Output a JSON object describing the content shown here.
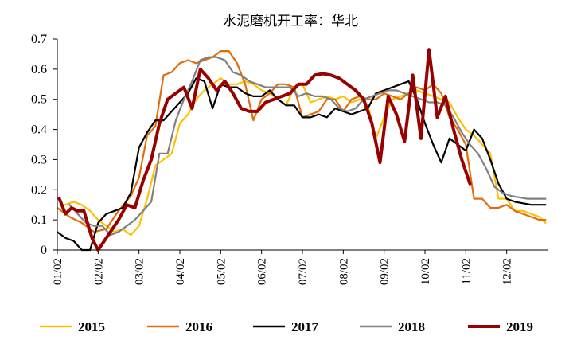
{
  "chart_data": {
    "type": "line",
    "title": "水泥磨机开工率：华北",
    "xlabel": "",
    "ylabel": "",
    "ylim": [
      0,
      0.7
    ],
    "yticks": [
      "0",
      "0.1",
      "0.2",
      "0.3",
      "0.4",
      "0.5",
      "0.6",
      "0.7"
    ],
    "xlim": [
      1,
      13
    ],
    "xticks": [
      "01/02",
      "02/02",
      "03/02",
      "04/02",
      "05/02",
      "06/02",
      "07/02",
      "08/02",
      "09/02",
      "10/02",
      "11/02",
      "12/02"
    ],
    "grid": false,
    "legend": "bottom",
    "series": [
      {
        "name": "2015",
        "color": "#FFC000",
        "width": 2.2,
        "points": [
          [
            1.2,
            0.15
          ],
          [
            1.4,
            0.16
          ],
          [
            1.6,
            0.15
          ],
          [
            1.8,
            0.13
          ],
          [
            2.0,
            0.1
          ],
          [
            2.2,
            0.08
          ],
          [
            2.4,
            0.06
          ],
          [
            2.6,
            0.07
          ],
          [
            2.8,
            0.05
          ],
          [
            3.0,
            0.08
          ],
          [
            3.2,
            0.17
          ],
          [
            3.4,
            0.28
          ],
          [
            3.6,
            0.3
          ],
          [
            3.8,
            0.32
          ],
          [
            4.0,
            0.42
          ],
          [
            4.2,
            0.45
          ],
          [
            4.4,
            0.5
          ],
          [
            4.6,
            0.53
          ],
          [
            4.8,
            0.55
          ],
          [
            5.0,
            0.57
          ],
          [
            5.2,
            0.55
          ],
          [
            5.4,
            0.55
          ],
          [
            5.6,
            0.56
          ],
          [
            5.8,
            0.55
          ],
          [
            6.0,
            0.53
          ],
          [
            6.2,
            0.52
          ],
          [
            6.4,
            0.5
          ],
          [
            6.6,
            0.48
          ],
          [
            6.8,
            0.54
          ],
          [
            7.0,
            0.55
          ],
          [
            7.2,
            0.49
          ],
          [
            7.4,
            0.5
          ],
          [
            7.6,
            0.51
          ],
          [
            7.8,
            0.5
          ],
          [
            8.0,
            0.51
          ],
          [
            8.2,
            0.49
          ],
          [
            8.4,
            0.5
          ],
          [
            8.6,
            0.48
          ],
          [
            8.8,
            0.37
          ],
          [
            9.0,
            0.44
          ],
          [
            9.2,
            0.5
          ],
          [
            9.4,
            0.51
          ],
          [
            9.6,
            0.52
          ],
          [
            9.8,
            0.53
          ],
          [
            10.0,
            0.52
          ],
          [
            10.2,
            0.51
          ],
          [
            10.4,
            0.5
          ],
          [
            10.6,
            0.49
          ],
          [
            10.8,
            0.44
          ],
          [
            11.0,
            0.4
          ],
          [
            11.2,
            0.38
          ],
          [
            11.4,
            0.35
          ],
          [
            11.6,
            0.32
          ],
          [
            11.8,
            0.17
          ],
          [
            12.0,
            0.17
          ],
          [
            12.2,
            0.13
          ],
          [
            12.4,
            0.13
          ],
          [
            12.6,
            0.12
          ],
          [
            12.8,
            0.11
          ],
          [
            12.95,
            0.09
          ]
        ]
      },
      {
        "name": "2016",
        "color": "#E46C0A",
        "width": 2.2,
        "points": [
          [
            1.0,
            0.14
          ],
          [
            1.3,
            0.11
          ],
          [
            1.6,
            0.09
          ],
          [
            1.9,
            0.06
          ],
          [
            2.2,
            0.07
          ],
          [
            2.5,
            0.13
          ],
          [
            2.8,
            0.18
          ],
          [
            3.0,
            0.24
          ],
          [
            3.2,
            0.38
          ],
          [
            3.4,
            0.41
          ],
          [
            3.6,
            0.58
          ],
          [
            3.8,
            0.59
          ],
          [
            4.0,
            0.62
          ],
          [
            4.2,
            0.63
          ],
          [
            4.4,
            0.62
          ],
          [
            4.6,
            0.63
          ],
          [
            4.8,
            0.64
          ],
          [
            5.0,
            0.66
          ],
          [
            5.2,
            0.66
          ],
          [
            5.4,
            0.62
          ],
          [
            5.6,
            0.55
          ],
          [
            5.8,
            0.43
          ],
          [
            6.0,
            0.5
          ],
          [
            6.2,
            0.52
          ],
          [
            6.4,
            0.55
          ],
          [
            6.6,
            0.55
          ],
          [
            6.8,
            0.54
          ],
          [
            7.0,
            0.44
          ],
          [
            7.2,
            0.45
          ],
          [
            7.4,
            0.46
          ],
          [
            7.6,
            0.5
          ],
          [
            7.8,
            0.5
          ],
          [
            8.0,
            0.46
          ],
          [
            8.2,
            0.5
          ],
          [
            8.4,
            0.51
          ],
          [
            8.6,
            0.5
          ],
          [
            8.8,
            0.5
          ],
          [
            9.0,
            0.52
          ],
          [
            9.2,
            0.51
          ],
          [
            9.4,
            0.5
          ],
          [
            9.6,
            0.52
          ],
          [
            9.8,
            0.54
          ],
          [
            10.0,
            0.53
          ],
          [
            10.2,
            0.55
          ],
          [
            10.4,
            0.52
          ],
          [
            10.6,
            0.44
          ],
          [
            10.8,
            0.4
          ],
          [
            11.0,
            0.35
          ],
          [
            11.2,
            0.17
          ],
          [
            11.4,
            0.17
          ],
          [
            11.6,
            0.14
          ],
          [
            11.8,
            0.14
          ],
          [
            12.0,
            0.15
          ],
          [
            12.2,
            0.13
          ],
          [
            12.4,
            0.12
          ],
          [
            12.6,
            0.11
          ],
          [
            12.8,
            0.1
          ],
          [
            12.95,
            0.1
          ]
        ]
      },
      {
        "name": "2017",
        "color": "#000000",
        "width": 2.2,
        "points": [
          [
            1.0,
            0.06
          ],
          [
            1.2,
            0.04
          ],
          [
            1.4,
            0.03
          ],
          [
            1.6,
            0.0
          ],
          [
            1.8,
            0.0
          ],
          [
            2.0,
            0.09
          ],
          [
            2.2,
            0.12
          ],
          [
            2.4,
            0.13
          ],
          [
            2.6,
            0.14
          ],
          [
            2.8,
            0.19
          ],
          [
            3.0,
            0.34
          ],
          [
            3.2,
            0.39
          ],
          [
            3.4,
            0.43
          ],
          [
            3.6,
            0.43
          ],
          [
            3.8,
            0.46
          ],
          [
            4.0,
            0.49
          ],
          [
            4.2,
            0.52
          ],
          [
            4.4,
            0.57
          ],
          [
            4.6,
            0.56
          ],
          [
            4.8,
            0.47
          ],
          [
            5.0,
            0.55
          ],
          [
            5.2,
            0.54
          ],
          [
            5.4,
            0.54
          ],
          [
            5.6,
            0.52
          ],
          [
            5.8,
            0.51
          ],
          [
            6.0,
            0.51
          ],
          [
            6.2,
            0.53
          ],
          [
            6.4,
            0.5
          ],
          [
            6.6,
            0.48
          ],
          [
            6.8,
            0.48
          ],
          [
            7.0,
            0.44
          ],
          [
            7.2,
            0.44
          ],
          [
            7.4,
            0.45
          ],
          [
            7.6,
            0.44
          ],
          [
            7.8,
            0.47
          ],
          [
            8.0,
            0.46
          ],
          [
            8.2,
            0.45
          ],
          [
            8.4,
            0.46
          ],
          [
            8.6,
            0.47
          ],
          [
            8.8,
            0.52
          ],
          [
            9.0,
            0.53
          ],
          [
            9.2,
            0.54
          ],
          [
            9.4,
            0.55
          ],
          [
            9.6,
            0.56
          ],
          [
            9.8,
            0.5
          ],
          [
            10.0,
            0.42
          ],
          [
            10.2,
            0.35
          ],
          [
            10.4,
            0.29
          ],
          [
            10.6,
            0.37
          ],
          [
            10.8,
            0.35
          ],
          [
            11.0,
            0.33
          ],
          [
            11.2,
            0.4
          ],
          [
            11.4,
            0.37
          ],
          [
            11.6,
            0.3
          ],
          [
            11.8,
            0.22
          ],
          [
            12.0,
            0.17
          ],
          [
            12.2,
            0.16
          ],
          [
            12.4,
            0.155
          ],
          [
            12.6,
            0.15
          ],
          [
            12.95,
            0.15
          ]
        ]
      },
      {
        "name": "2018",
        "color": "#808080",
        "width": 2.2,
        "points": [
          [
            1.3,
            0.15
          ],
          [
            1.5,
            0.12
          ],
          [
            1.7,
            0.09
          ],
          [
            1.9,
            0.08
          ],
          [
            2.1,
            0.08
          ],
          [
            2.3,
            0.05
          ],
          [
            2.5,
            0.06
          ],
          [
            2.7,
            0.08
          ],
          [
            2.9,
            0.1
          ],
          [
            3.1,
            0.13
          ],
          [
            3.3,
            0.16
          ],
          [
            3.5,
            0.32
          ],
          [
            3.7,
            0.32
          ],
          [
            3.9,
            0.43
          ],
          [
            4.1,
            0.5
          ],
          [
            4.3,
            0.56
          ],
          [
            4.5,
            0.63
          ],
          [
            4.7,
            0.64
          ],
          [
            4.9,
            0.64
          ],
          [
            5.1,
            0.63
          ],
          [
            5.3,
            0.59
          ],
          [
            5.5,
            0.58
          ],
          [
            5.7,
            0.56
          ],
          [
            5.9,
            0.55
          ],
          [
            6.1,
            0.54
          ],
          [
            6.3,
            0.54
          ],
          [
            6.5,
            0.54
          ],
          [
            6.7,
            0.54
          ],
          [
            6.9,
            0.51
          ],
          [
            7.1,
            0.52
          ],
          [
            7.3,
            0.51
          ],
          [
            7.5,
            0.51
          ],
          [
            7.7,
            0.5
          ],
          [
            7.9,
            0.47
          ],
          [
            8.1,
            0.46
          ],
          [
            8.3,
            0.47
          ],
          [
            8.5,
            0.5
          ],
          [
            8.7,
            0.51
          ],
          [
            8.9,
            0.52
          ],
          [
            9.1,
            0.53
          ],
          [
            9.3,
            0.53
          ],
          [
            9.5,
            0.52
          ],
          [
            9.7,
            0.51
          ],
          [
            9.9,
            0.5
          ],
          [
            10.1,
            0.49
          ],
          [
            10.3,
            0.49
          ],
          [
            10.5,
            0.48
          ],
          [
            10.7,
            0.44
          ],
          [
            10.9,
            0.39
          ],
          [
            11.1,
            0.35
          ],
          [
            11.3,
            0.32
          ],
          [
            11.5,
            0.27
          ],
          [
            11.7,
            0.21
          ],
          [
            11.9,
            0.19
          ],
          [
            12.1,
            0.18
          ],
          [
            12.3,
            0.175
          ],
          [
            12.5,
            0.17
          ],
          [
            12.7,
            0.17
          ],
          [
            12.95,
            0.17
          ]
        ]
      },
      {
        "name": "2019",
        "color": "#990000",
        "width": 4,
        "points": [
          [
            1.05,
            0.17
          ],
          [
            1.2,
            0.12
          ],
          [
            1.35,
            0.14
          ],
          [
            1.5,
            0.13
          ],
          [
            1.65,
            0.13
          ],
          [
            1.85,
            0.04
          ],
          [
            2.0,
            0.0
          ],
          [
            2.3,
            0.06
          ],
          [
            2.5,
            0.1
          ],
          [
            2.7,
            0.15
          ],
          [
            2.9,
            0.14
          ],
          [
            3.1,
            0.23
          ],
          [
            3.3,
            0.3
          ],
          [
            3.5,
            0.42
          ],
          [
            3.7,
            0.5
          ],
          [
            3.9,
            0.52
          ],
          [
            4.1,
            0.54
          ],
          [
            4.3,
            0.47
          ],
          [
            4.5,
            0.6
          ],
          [
            4.7,
            0.57
          ],
          [
            4.9,
            0.53
          ],
          [
            5.1,
            0.56
          ],
          [
            5.3,
            0.52
          ],
          [
            5.5,
            0.47
          ],
          [
            5.7,
            0.46
          ],
          [
            5.9,
            0.46
          ],
          [
            6.1,
            0.49
          ],
          [
            6.3,
            0.5
          ],
          [
            6.5,
            0.51
          ],
          [
            6.7,
            0.52
          ],
          [
            6.9,
            0.55
          ],
          [
            7.1,
            0.55
          ],
          [
            7.3,
            0.58
          ],
          [
            7.5,
            0.585
          ],
          [
            7.7,
            0.58
          ],
          [
            7.9,
            0.57
          ],
          [
            8.1,
            0.55
          ],
          [
            8.3,
            0.53
          ],
          [
            8.5,
            0.5
          ],
          [
            8.7,
            0.42
          ],
          [
            8.9,
            0.29
          ],
          [
            9.1,
            0.51
          ],
          [
            9.3,
            0.45
          ],
          [
            9.5,
            0.36
          ],
          [
            9.7,
            0.58
          ],
          [
            9.9,
            0.37
          ],
          [
            10.1,
            0.665
          ],
          [
            10.3,
            0.44
          ],
          [
            10.5,
            0.51
          ],
          [
            10.7,
            0.4
          ],
          [
            10.9,
            0.3
          ],
          [
            11.1,
            0.22
          ]
        ]
      }
    ]
  }
}
